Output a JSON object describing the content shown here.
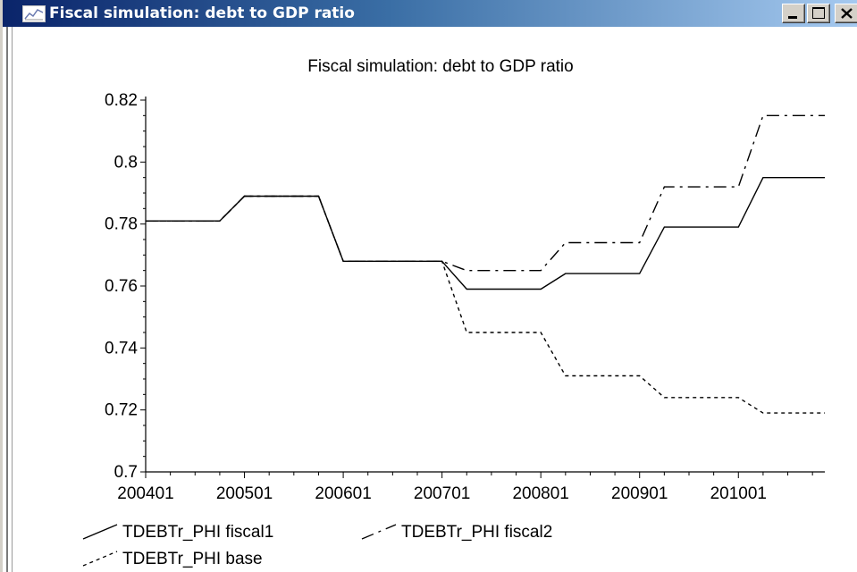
{
  "window": {
    "title": "Fiscal simulation: debt to GDP ratio",
    "controls": {
      "minimize": "minimize",
      "maximize": "maximize",
      "close": "close"
    }
  },
  "chart_data": {
    "type": "line",
    "title": "Fiscal simulation: debt to GDP ratio",
    "xlabel": "",
    "ylabel": "",
    "x_tick_labels": [
      "200401",
      "200501",
      "200601",
      "200701",
      "200801",
      "200901",
      "201001"
    ],
    "y_tick_labels": [
      "0.7",
      "0.72",
      "0.74",
      "0.76",
      "0.78",
      "0.8",
      "0.82"
    ],
    "ylim": [
      0.7,
      0.82
    ],
    "x_unit": "quarter index (0 = 200401)",
    "xlim": [
      0,
      27.5
    ],
    "grid": false,
    "legend_position": "bottom-left",
    "series": [
      {
        "name": "TDEBTr_PHI fiscal1",
        "style": "solid",
        "color": "#000000",
        "points": [
          [
            0,
            0.781
          ],
          [
            3,
            0.781
          ],
          [
            4,
            0.789
          ],
          [
            7,
            0.789
          ],
          [
            8,
            0.768
          ],
          [
            12,
            0.768
          ],
          [
            13,
            0.759
          ],
          [
            16,
            0.759
          ],
          [
            17,
            0.764
          ],
          [
            20,
            0.764
          ],
          [
            21,
            0.779
          ],
          [
            24,
            0.779
          ],
          [
            25,
            0.795
          ],
          [
            27.5,
            0.795
          ]
        ]
      },
      {
        "name": "TDEBTr_PHI fiscal2",
        "style": "dashdot",
        "color": "#000000",
        "points": [
          [
            0,
            0.781
          ],
          [
            3,
            0.781
          ],
          [
            4,
            0.789
          ],
          [
            7,
            0.789
          ],
          [
            8,
            0.768
          ],
          [
            12,
            0.768
          ],
          [
            13,
            0.765
          ],
          [
            16,
            0.765
          ],
          [
            17,
            0.774
          ],
          [
            20,
            0.774
          ],
          [
            21,
            0.792
          ],
          [
            24,
            0.792
          ],
          [
            25,
            0.815
          ],
          [
            27.5,
            0.815
          ]
        ]
      },
      {
        "name": "TDEBTr_PHI base",
        "style": "dashed",
        "color": "#000000",
        "points": [
          [
            0,
            0.781
          ],
          [
            3,
            0.781
          ],
          [
            4,
            0.789
          ],
          [
            7,
            0.789
          ],
          [
            8,
            0.768
          ],
          [
            12,
            0.768
          ],
          [
            13,
            0.745
          ],
          [
            16,
            0.745
          ],
          [
            17,
            0.731
          ],
          [
            20,
            0.731
          ],
          [
            21,
            0.724
          ],
          [
            24,
            0.724
          ],
          [
            25,
            0.719
          ],
          [
            27.5,
            0.719
          ]
        ]
      }
    ]
  }
}
